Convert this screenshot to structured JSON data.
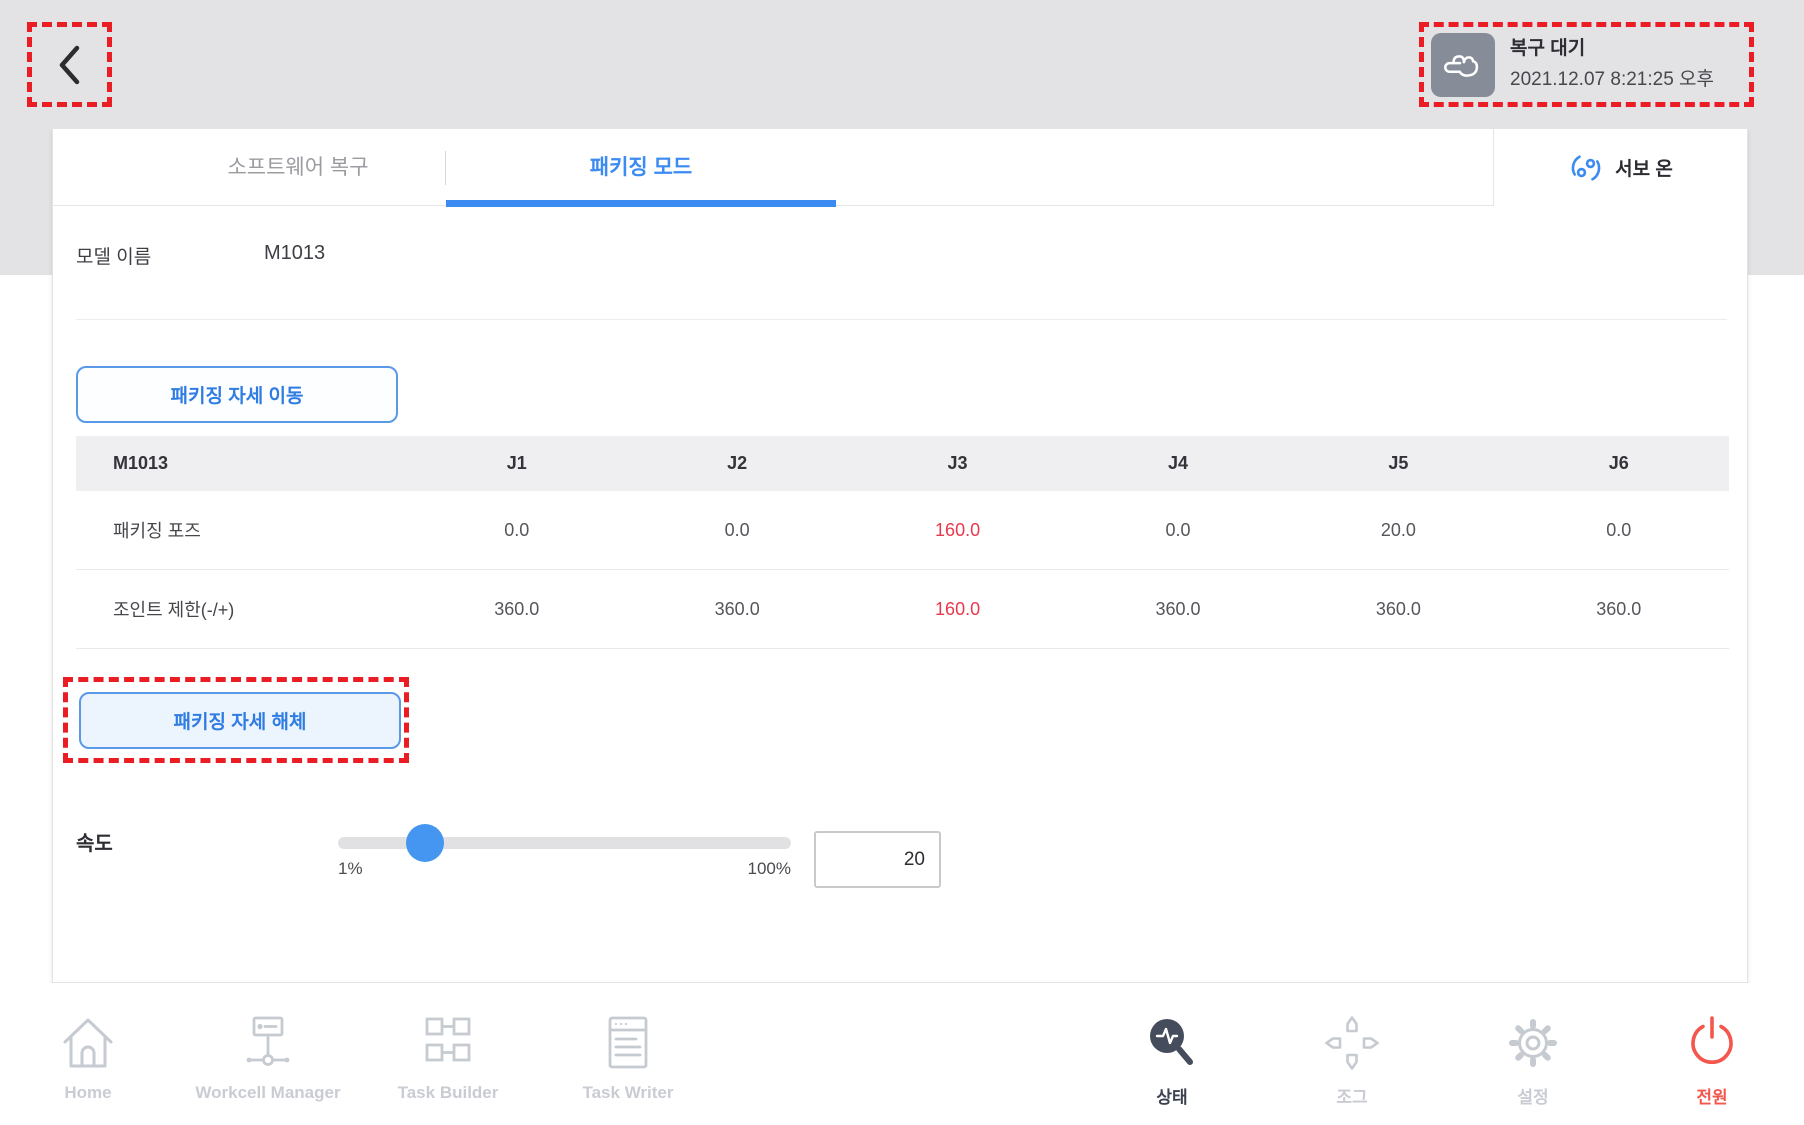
{
  "header": {
    "status_title": "복구 대기",
    "status_timestamp": "2021.12.07 8:21:25 오후"
  },
  "tabs": {
    "software_recovery_label": "소프트웨어 복구",
    "packaging_mode_label": "패키징 모드"
  },
  "servo": {
    "label": "서보 온"
  },
  "model": {
    "label": "모델 이름",
    "value": "M1013"
  },
  "actions": {
    "move_label": "패키징 자세 이동",
    "release_label": "패키징 자세 해체"
  },
  "joint_table": {
    "header": [
      "M1013",
      "J1",
      "J2",
      "J3",
      "J4",
      "J5",
      "J6"
    ],
    "rows": [
      {
        "label": "패키징 포즈",
        "values": [
          "0.0",
          "0.0",
          "160.0",
          "0.0",
          "20.0",
          "0.0"
        ],
        "highlight_index": 2
      },
      {
        "label": "조인트 제한(-/+)",
        "values": [
          "360.0",
          "360.0",
          "160.0",
          "360.0",
          "360.0",
          "360.0"
        ],
        "highlight_index": 2
      }
    ]
  },
  "speed": {
    "label": "속도",
    "min_label": "1%",
    "max_label": "100%",
    "value": "20"
  },
  "footer": {
    "items": [
      {
        "label": "Home"
      },
      {
        "label": "Workcell Manager"
      },
      {
        "label": "Task Builder"
      },
      {
        "label": "Task Writer"
      },
      {
        "label": "상태"
      },
      {
        "label": "조그"
      },
      {
        "label": "설정"
      },
      {
        "label": "전원"
      }
    ]
  },
  "colors": {
    "accent_blue": "#3b8bf2",
    "highlight_red": "#e8384d",
    "annotation_red": "#ea1d25",
    "power_red": "#f4574d",
    "nav_active_dark": "#3c424f",
    "nav_inactive_gray": "#c9ccd3",
    "status_icon_bg": "#868c98",
    "header_band_gray": "#e3e2e4"
  }
}
